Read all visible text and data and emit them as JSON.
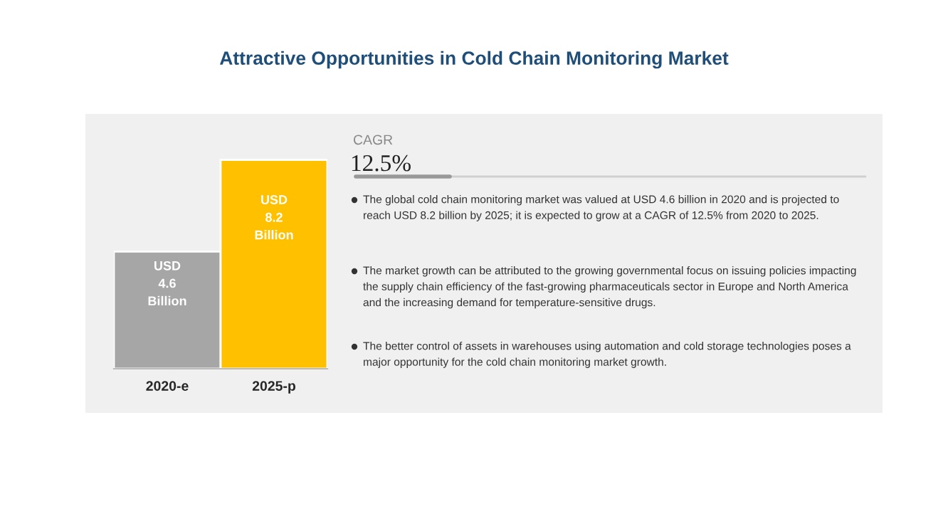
{
  "chart_data": {
    "type": "bar",
    "title": "Attractive Opportunities in Cold Chain Monitoring Market",
    "categories": [
      "2020-e",
      "2025-p"
    ],
    "values": [
      4.6,
      8.2
    ],
    "colors": [
      "#a6a6a6",
      "#ffc000"
    ],
    "value_labels": [
      "USD\n4.6\nBillion",
      "USD\n8.2\nBillion"
    ],
    "annotations": [
      "CAGR",
      "12.5%",
      "The global cold chain monitoring market was valued at USD 4.6 billion in 2020 and is projected to reach USD 8.2 billion by 2025; it is expected to grow at a CAGR of 12.5% from 2020 to 2025.",
      "The market growth can be attributed to the growing governmental focus on issuing policies impacting the supply chain efficiency of the fast-growing pharmaceuticals sector in Europe and North America and the increasing demand for temperature-sensitive drugs.",
      "The better control of assets in warehouses using automation and cold storage technologies poses a major opportunity for the cold chain monitoring market growth."
    ]
  }
}
